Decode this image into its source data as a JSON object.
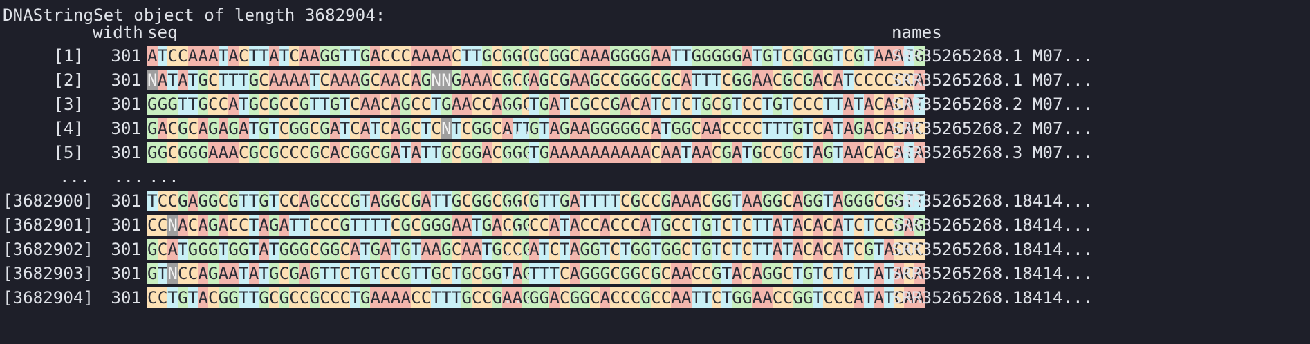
{
  "header": "DNAStringSet object of length 3682904:",
  "columns": {
    "width": "width",
    "seq": "seq",
    "names": "names"
  },
  "ellipsis": "...",
  "rows_top": [
    {
      "index": "[1]",
      "width": "301",
      "seq_head": "ATCCAAATACTTATCAAGGTTGACCCAAAACTTGCGGCC",
      "seq_tail": "GCGGCAAAGGGGAATTGGGGGATGTCGCGGTCGTAAATG",
      "name": "SRR35265268.1 M07..."
    },
    {
      "index": "[2]",
      "width": "301",
      "seq_head": "NATATGCTTTGCAAAATCAAAGCAACAGNNGAAACGCGC",
      "seq_tail": "AGCGAAGCCGGGCGCATTTCGGAACGCGACATCCCCCCA",
      "name": "SRR35265268.1 M07..."
    },
    {
      "index": "[3]",
      "width": "301",
      "seq_head": "GGGTTGCCATGCGCCGTTGTCAACAGCCTGAACCAGGCT",
      "seq_tail": "TGATCGCCGACATCTCTGCGTCCTGTCCCTTATACACAT",
      "name": "SRR35265268.2 M07..."
    },
    {
      "index": "[4]",
      "width": "301",
      "seq_head": "GACGCAGAGATGTCGGCGATCATCAGCTCNTCGGCATTT",
      "seq_tail": "GTAGAAGGGGGCATGGCAACCCCTTTGTCATAGACACAC",
      "name": "SRR35265268.2 M07..."
    },
    {
      "index": "[5]",
      "width": "301",
      "seq_head": "GGCGGGAAACGCGCCCGCACGGCGATATTGCGGACGGGG",
      "seq_tail": "TGAAAAAAAAAACAATAACGATGCCGCTAGTAACACATA",
      "name": "SRR35265268.3 M07..."
    }
  ],
  "ellipsis_row": {
    "index": "...",
    "width": "...",
    "seq": "..."
  },
  "rows_bottom": [
    {
      "index": "[3682900]",
      "width": "301",
      "seq_head": "TCCGAGGCGTTGTCCAGCCCGTAGGCGATTGCGGCGGCG",
      "seq_tail": "GTTGATTTTCGCCGAAACGGTAAGGCAGGTAGGGCGGTT",
      "name": "SRR35265268.18414..."
    },
    {
      "index": "[3682901]",
      "width": "301",
      "seq_head": "CCNACAGACCTAGATTCCCGTTTTCGCGGGAATGACGGC",
      "seq_tail": "CCATACCACCCATGCCTGTCTCTTATACACATCTCCGAG",
      "name": "SRR35265268.18414..."
    },
    {
      "index": "[3682902]",
      "width": "301",
      "seq_head": "GCATGGGTGGTATGGGCGGCATGATGTAAGCAATGCCGT",
      "seq_tail": "ATCTAGGTCTGGTGGCTGTCTCTTATACACATCGTACCC",
      "name": "SRR35265268.18414..."
    },
    {
      "index": "[3682903]",
      "width": "301",
      "seq_head": "GTNCCAGAATATGCGAGTTCTGTCCGTTGCTGCGGTAGT",
      "seq_tail": "TTTCAGGGCGGCGCAACCGTACAGGCTGTCTCTTATACA",
      "name": "SRR35265268.18414..."
    },
    {
      "index": "[3682904]",
      "width": "301",
      "seq_head": "CCTGTACGGTTGCGCCGCCCTGAAAACCTTTGCCGAAGC",
      "seq_tail": "GGACGGCACCCGCCAATTCTGGAACCGGTCCCATATCAA",
      "name": "SRR35265268.18414..."
    }
  ],
  "colors": {
    "A": "#f3b6ad",
    "C": "#fde1b5",
    "G": "#c9efc0",
    "T": "#c9f0f7",
    "N": "#9e9e9e",
    "background": "#1e1f29",
    "text": "#dfe2e8"
  }
}
